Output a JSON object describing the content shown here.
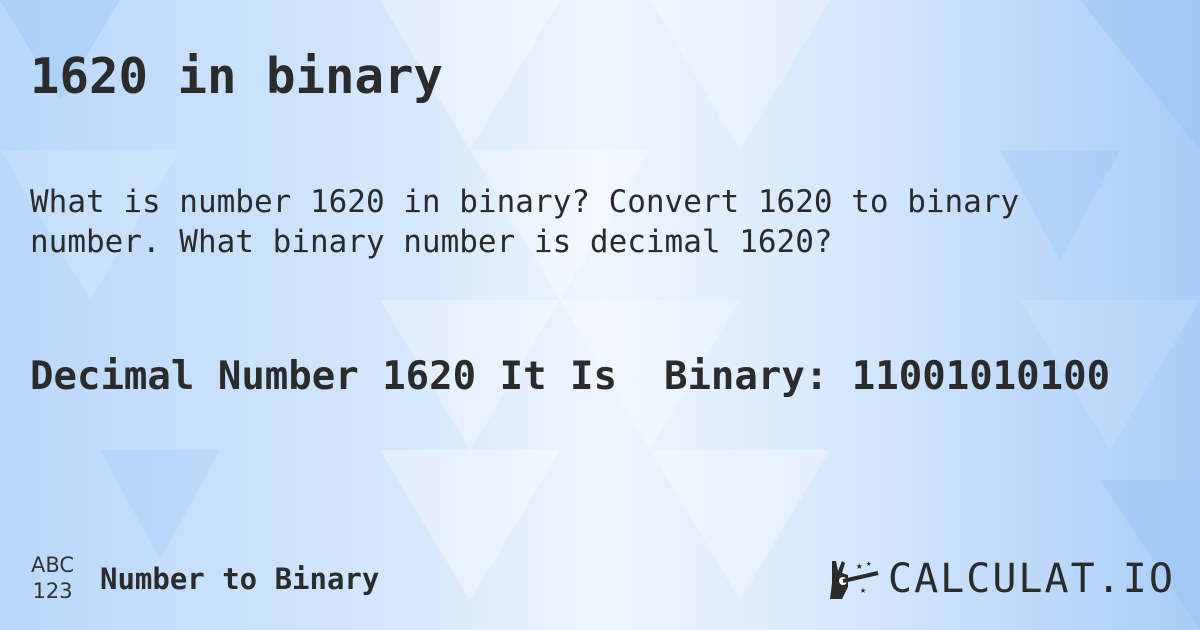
{
  "title": "1620 in binary",
  "description": "What is number 1620 in binary? Convert 1620 to binary\nnumber. What binary number is decimal 1620?",
  "result": "Decimal Number 1620 It Is  Binary: 11001010100",
  "footer": {
    "icon_top": "ABC",
    "icon_bottom": "123",
    "category": "Number to Binary"
  },
  "logo": {
    "text": "CALCULAT.IO",
    "icon": "magic-hand-icon"
  },
  "colors": {
    "text": "#2b2b2b",
    "background": "#d6e8fd"
  }
}
